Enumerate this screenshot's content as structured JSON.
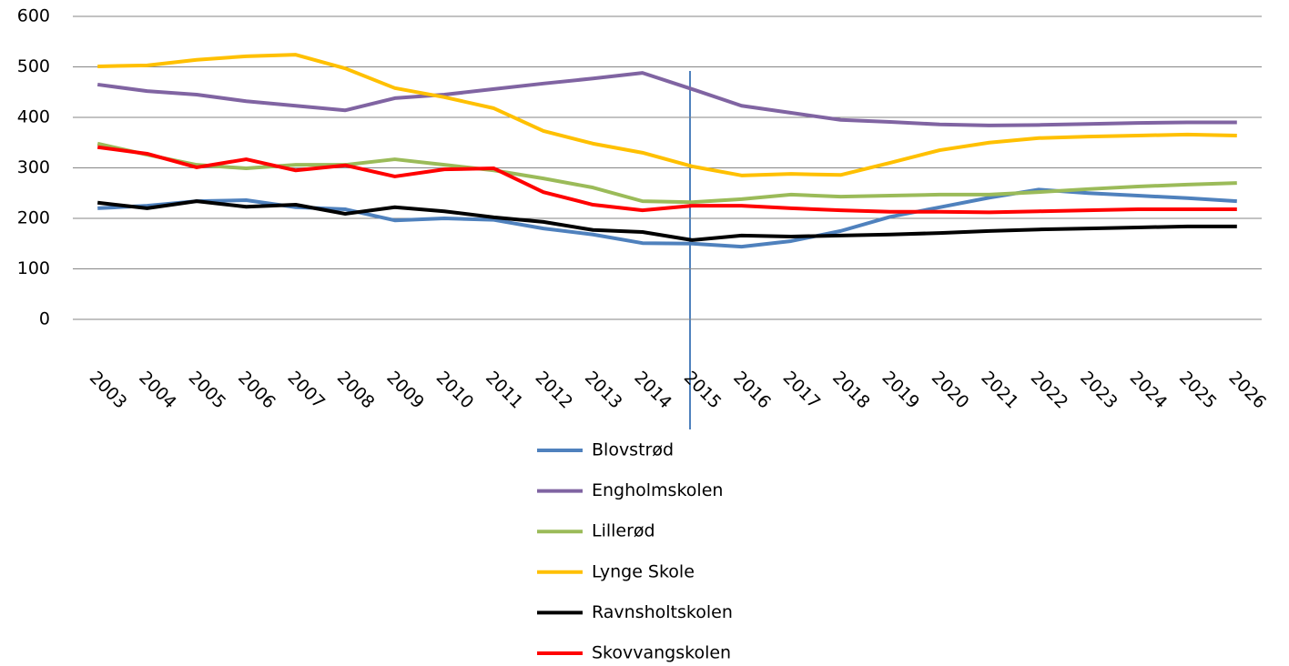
{
  "chart_data": {
    "type": "line",
    "categories": [
      "2003",
      "2004",
      "2005",
      "2006",
      "2007",
      "2008",
      "2009",
      "2010",
      "2011",
      "2012",
      "2013",
      "2014",
      "2015",
      "2016",
      "2017",
      "2018",
      "2019",
      "2020",
      "2021",
      "2022",
      "2023",
      "2024",
      "2025",
      "2026"
    ],
    "series": [
      {
        "name": "Blovstrød",
        "color": "#4f81bd",
        "values": [
          220,
          225,
          234,
          236,
          222,
          218,
          196,
          200,
          197,
          180,
          168,
          151,
          150,
          144,
          155,
          175,
          203,
          222,
          241,
          257,
          250,
          245,
          240,
          234
        ]
      },
      {
        "name": "Engholmskolen",
        "color": "#8064a2",
        "values": [
          465,
          452,
          445,
          432,
          423,
          414,
          438,
          445,
          456,
          467,
          477,
          488,
          456,
          423,
          409,
          395,
          391,
          386,
          384,
          385,
          387,
          389,
          390,
          390
        ]
      },
      {
        "name": "Lillerød",
        "color": "#9bbb59",
        "values": [
          348,
          326,
          306,
          299,
          306,
          306,
          317,
          306,
          295,
          279,
          261,
          234,
          232,
          238,
          247,
          243,
          245,
          247,
          247,
          252,
          258,
          263,
          267,
          270
        ]
      },
      {
        "name": "Lynge Skole",
        "color": "#ffc000",
        "values": [
          501,
          503,
          514,
          521,
          524,
          497,
          458,
          440,
          418,
          373,
          348,
          330,
          303,
          285,
          288,
          286,
          310,
          335,
          350,
          359,
          362,
          364,
          366,
          364
        ]
      },
      {
        "name": "Ravnsholtskolen",
        "color": "#000000",
        "values": [
          231,
          220,
          234,
          223,
          227,
          209,
          222,
          214,
          202,
          193,
          177,
          173,
          157,
          166,
          164,
          166,
          168,
          171,
          175,
          178,
          180,
          182,
          184,
          184
        ]
      },
      {
        "name": "Skovvangskolen",
        "color": "#ff0000",
        "values": [
          341,
          328,
          301,
          317,
          295,
          305,
          283,
          297,
          299,
          252,
          227,
          216,
          225,
          225,
          220,
          216,
          213,
          213,
          212,
          214,
          216,
          218,
          218,
          218
        ]
      }
    ],
    "ylim": [
      0,
      600
    ],
    "yticks": [
      0,
      100,
      200,
      300,
      400,
      500,
      600
    ],
    "grid": true,
    "legend": "bottom"
  }
}
